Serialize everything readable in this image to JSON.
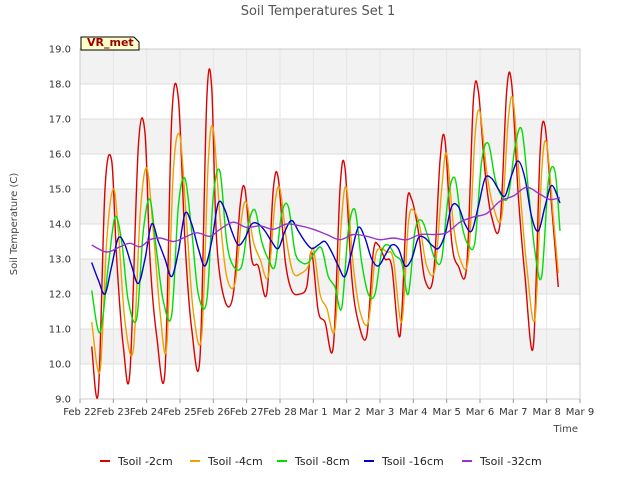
{
  "chart_data": {
    "type": "line",
    "title": "Soil Temperatures Set 1",
    "xlabel": "Time",
    "ylabel": "Soil Temperature (C)",
    "ylim": [
      9.0,
      19.0
    ],
    "xlim": [
      "Feb 22",
      "Mar 9"
    ],
    "yticks": [
      "9.0",
      "10.0",
      "11.0",
      "12.0",
      "13.0",
      "14.0",
      "15.0",
      "16.0",
      "17.0",
      "18.0",
      "19.0"
    ],
    "xticks": [
      "Feb 22",
      "Feb 23",
      "Feb 24",
      "Feb 25",
      "Feb 26",
      "Feb 27",
      "Feb 28",
      "Mar 1",
      "Mar 2",
      "Mar 3",
      "Mar 4",
      "Mar 5",
      "Mar 6",
      "Mar 7",
      "Mar 8",
      "Mar 9"
    ],
    "grid": true,
    "legend_position": "bottom",
    "badge": "VR_met",
    "series": [
      {
        "name": "Tsoil -2cm",
        "color": "#dd0000",
        "x": [
          0.35,
          0.55,
          0.75,
          0.95,
          1.1,
          1.3,
          1.5,
          1.75,
          1.95,
          2.1,
          2.3,
          2.55,
          2.75,
          2.95,
          3.15,
          3.35,
          3.6,
          3.8,
          3.95,
          4.1,
          4.35,
          4.6,
          4.8,
          4.95,
          5.15,
          5.35,
          5.6,
          5.8,
          5.95,
          6.15,
          6.35,
          6.6,
          6.8,
          6.95,
          7.15,
          7.35,
          7.6,
          7.8,
          7.95,
          8.15,
          8.35,
          8.6,
          8.8,
          8.95,
          9.15,
          9.35,
          9.6,
          9.8,
          9.95,
          10.15,
          10.35,
          10.6,
          10.8,
          10.95,
          11.15,
          11.35,
          11.6,
          11.8,
          11.95,
          12.15,
          12.35,
          12.6,
          12.8,
          12.95,
          13.15,
          13.35,
          13.6,
          13.8,
          13.95,
          14.15,
          14.35
        ],
        "y": [
          10.5,
          9.2,
          15.0,
          15.8,
          13.0,
          10.5,
          9.8,
          16.2,
          16.6,
          13.0,
          10.8,
          9.8,
          17.0,
          17.6,
          13.5,
          11.0,
          10.2,
          17.5,
          17.9,
          13.5,
          11.8,
          12.0,
          14.5,
          15.0,
          13.0,
          12.8,
          12.0,
          15.0,
          15.3,
          13.0,
          12.1,
          12.0,
          12.2,
          13.2,
          11.5,
          11.2,
          10.5,
          15.0,
          15.6,
          12.5,
          11.2,
          10.8,
          13.2,
          13.4,
          13.0,
          12.8,
          10.8,
          14.5,
          14.7,
          13.8,
          12.4,
          12.5,
          15.8,
          16.4,
          13.5,
          12.8,
          12.8,
          17.5,
          17.8,
          15.5,
          14.2,
          14.0,
          17.8,
          18.0,
          14.8,
          12.5,
          10.5,
          16.0,
          16.8,
          14.5,
          12.2
        ]
      },
      {
        "name": "Tsoil -4cm",
        "color": "#f0a000",
        "x": [
          0.35,
          0.6,
          0.8,
          1.0,
          1.15,
          1.35,
          1.6,
          1.8,
          2.0,
          2.2,
          2.4,
          2.6,
          2.8,
          3.0,
          3.2,
          3.4,
          3.65,
          3.85,
          4.0,
          4.2,
          4.4,
          4.65,
          4.85,
          5.0,
          5.2,
          5.4,
          5.65,
          5.85,
          6.0,
          6.2,
          6.4,
          6.65,
          6.85,
          7.0,
          7.2,
          7.4,
          7.65,
          7.85,
          8.0,
          8.2,
          8.4,
          8.65,
          8.85,
          9.0,
          9.2,
          9.4,
          9.65,
          9.85,
          10.0,
          10.2,
          10.4,
          10.65,
          10.85,
          11.0,
          11.2,
          11.4,
          11.65,
          11.85,
          12.0,
          12.2,
          12.4,
          12.65,
          12.85,
          13.0,
          13.2,
          13.4,
          13.65,
          13.85,
          14.0,
          14.2,
          14.35
        ],
        "y": [
          11.2,
          9.8,
          13.5,
          15.0,
          13.8,
          11.2,
          10.4,
          14.2,
          15.6,
          13.8,
          11.5,
          10.5,
          15.5,
          16.5,
          14.0,
          11.5,
          10.8,
          15.8,
          16.7,
          14.2,
          12.5,
          12.3,
          14.2,
          14.6,
          13.5,
          13.0,
          12.5,
          14.6,
          15.0,
          13.5,
          12.6,
          12.6,
          12.8,
          13.3,
          12.0,
          11.6,
          11.0,
          14.2,
          15.0,
          12.8,
          11.5,
          11.2,
          13.0,
          13.3,
          13.2,
          13.0,
          11.2,
          14.0,
          14.4,
          13.9,
          12.8,
          12.7,
          15.0,
          16.0,
          14.0,
          13.0,
          13.0,
          16.5,
          17.2,
          15.5,
          14.5,
          14.2,
          17.0,
          17.5,
          15.0,
          12.8,
          11.3,
          15.5,
          16.3,
          14.2,
          12.6
        ]
      },
      {
        "name": "Tsoil -8cm",
        "color": "#00dd00",
        "x": [
          0.35,
          0.6,
          0.85,
          1.05,
          1.25,
          1.45,
          1.7,
          1.9,
          2.1,
          2.3,
          2.5,
          2.75,
          2.95,
          3.15,
          3.35,
          3.55,
          3.8,
          4.0,
          4.2,
          4.4,
          4.6,
          4.85,
          5.05,
          5.25,
          5.45,
          5.65,
          5.85,
          6.05,
          6.25,
          6.45,
          6.65,
          6.85,
          7.05,
          7.25,
          7.45,
          7.65,
          7.85,
          8.05,
          8.25,
          8.45,
          8.65,
          8.85,
          9.05,
          9.25,
          9.45,
          9.65,
          9.85,
          10.05,
          10.25,
          10.45,
          10.65,
          10.85,
          11.05,
          11.25,
          11.45,
          11.65,
          11.85,
          12.05,
          12.25,
          12.45,
          12.65,
          12.85,
          13.05,
          13.25,
          13.45,
          13.65,
          13.85,
          14.05,
          14.25,
          14.4
        ],
        "y": [
          12.1,
          10.9,
          12.8,
          14.2,
          13.5,
          11.8,
          11.3,
          13.8,
          14.7,
          13.2,
          11.8,
          11.4,
          14.5,
          15.3,
          13.8,
          12.0,
          11.8,
          14.8,
          15.5,
          13.5,
          12.8,
          12.8,
          14.0,
          14.4,
          13.5,
          13.0,
          12.8,
          14.3,
          14.5,
          13.2,
          12.9,
          12.9,
          13.2,
          13.3,
          12.5,
          12.2,
          11.6,
          13.8,
          14.4,
          12.9,
          12.0,
          12.0,
          13.2,
          13.4,
          13.1,
          12.9,
          12.0,
          13.8,
          14.1,
          13.6,
          13.0,
          13.0,
          14.8,
          15.3,
          14.0,
          13.4,
          13.5,
          15.8,
          16.3,
          15.3,
          14.8,
          14.8,
          16.2,
          16.7,
          15.0,
          13.2,
          12.5,
          15.2,
          15.5,
          13.8
        ]
      },
      {
        "name": "Tsoil -16cm",
        "color": "#0000cc",
        "x": [
          0.35,
          0.55,
          0.75,
          0.95,
          1.15,
          1.35,
          1.55,
          1.75,
          1.95,
          2.15,
          2.35,
          2.55,
          2.75,
          2.95,
          3.15,
          3.35,
          3.55,
          3.75,
          3.95,
          4.15,
          4.35,
          4.55,
          4.75,
          4.95,
          5.15,
          5.35,
          5.55,
          5.75,
          5.95,
          6.15,
          6.35,
          6.55,
          6.75,
          6.95,
          7.15,
          7.35,
          7.55,
          7.75,
          7.95,
          8.15,
          8.35,
          8.55,
          8.75,
          8.95,
          9.15,
          9.35,
          9.55,
          9.75,
          9.95,
          10.15,
          10.35,
          10.55,
          10.75,
          10.95,
          11.15,
          11.35,
          11.55,
          11.75,
          11.95,
          12.15,
          12.35,
          12.55,
          12.75,
          12.95,
          13.15,
          13.35,
          13.55,
          13.75,
          13.95,
          14.15,
          14.4
        ],
        "y": [
          12.9,
          12.4,
          12.0,
          12.8,
          13.6,
          13.4,
          12.8,
          12.3,
          13.0,
          14.0,
          13.5,
          13.0,
          12.5,
          13.2,
          14.3,
          14.0,
          13.3,
          12.8,
          13.5,
          14.6,
          14.4,
          13.8,
          13.4,
          13.6,
          14.0,
          14.0,
          13.8,
          13.5,
          13.3,
          13.8,
          14.1,
          13.8,
          13.5,
          13.3,
          13.4,
          13.5,
          13.2,
          12.8,
          12.5,
          13.2,
          13.9,
          13.6,
          13.0,
          12.8,
          13.1,
          13.4,
          13.3,
          12.8,
          13.0,
          13.6,
          13.6,
          13.4,
          13.3,
          13.7,
          14.5,
          14.5,
          14.0,
          13.8,
          14.5,
          15.3,
          15.3,
          15.0,
          14.8,
          15.4,
          15.8,
          15.3,
          14.2,
          13.8,
          14.5,
          15.1,
          14.6
        ]
      },
      {
        "name": "Tsoil -32cm",
        "color": "#9933cc",
        "x": [
          0.35,
          0.8,
          1.2,
          1.5,
          1.8,
          2.1,
          2.4,
          2.8,
          3.1,
          3.5,
          3.9,
          4.2,
          4.6,
          5.0,
          5.4,
          5.8,
          6.2,
          6.6,
          7.0,
          7.4,
          7.8,
          8.2,
          8.6,
          9.0,
          9.4,
          9.8,
          10.2,
          10.6,
          11.0,
          11.4,
          11.8,
          12.2,
          12.6,
          13.0,
          13.4,
          13.8,
          14.1,
          14.4
        ],
        "y": [
          13.4,
          13.2,
          13.35,
          13.45,
          13.35,
          13.55,
          13.6,
          13.5,
          13.6,
          13.75,
          13.65,
          13.85,
          14.05,
          13.9,
          13.95,
          13.85,
          14.0,
          13.95,
          13.85,
          13.7,
          13.55,
          13.7,
          13.65,
          13.55,
          13.6,
          13.55,
          13.7,
          13.7,
          13.75,
          14.05,
          14.2,
          14.3,
          14.65,
          14.8,
          15.05,
          14.85,
          14.7,
          14.75
        ]
      }
    ]
  }
}
